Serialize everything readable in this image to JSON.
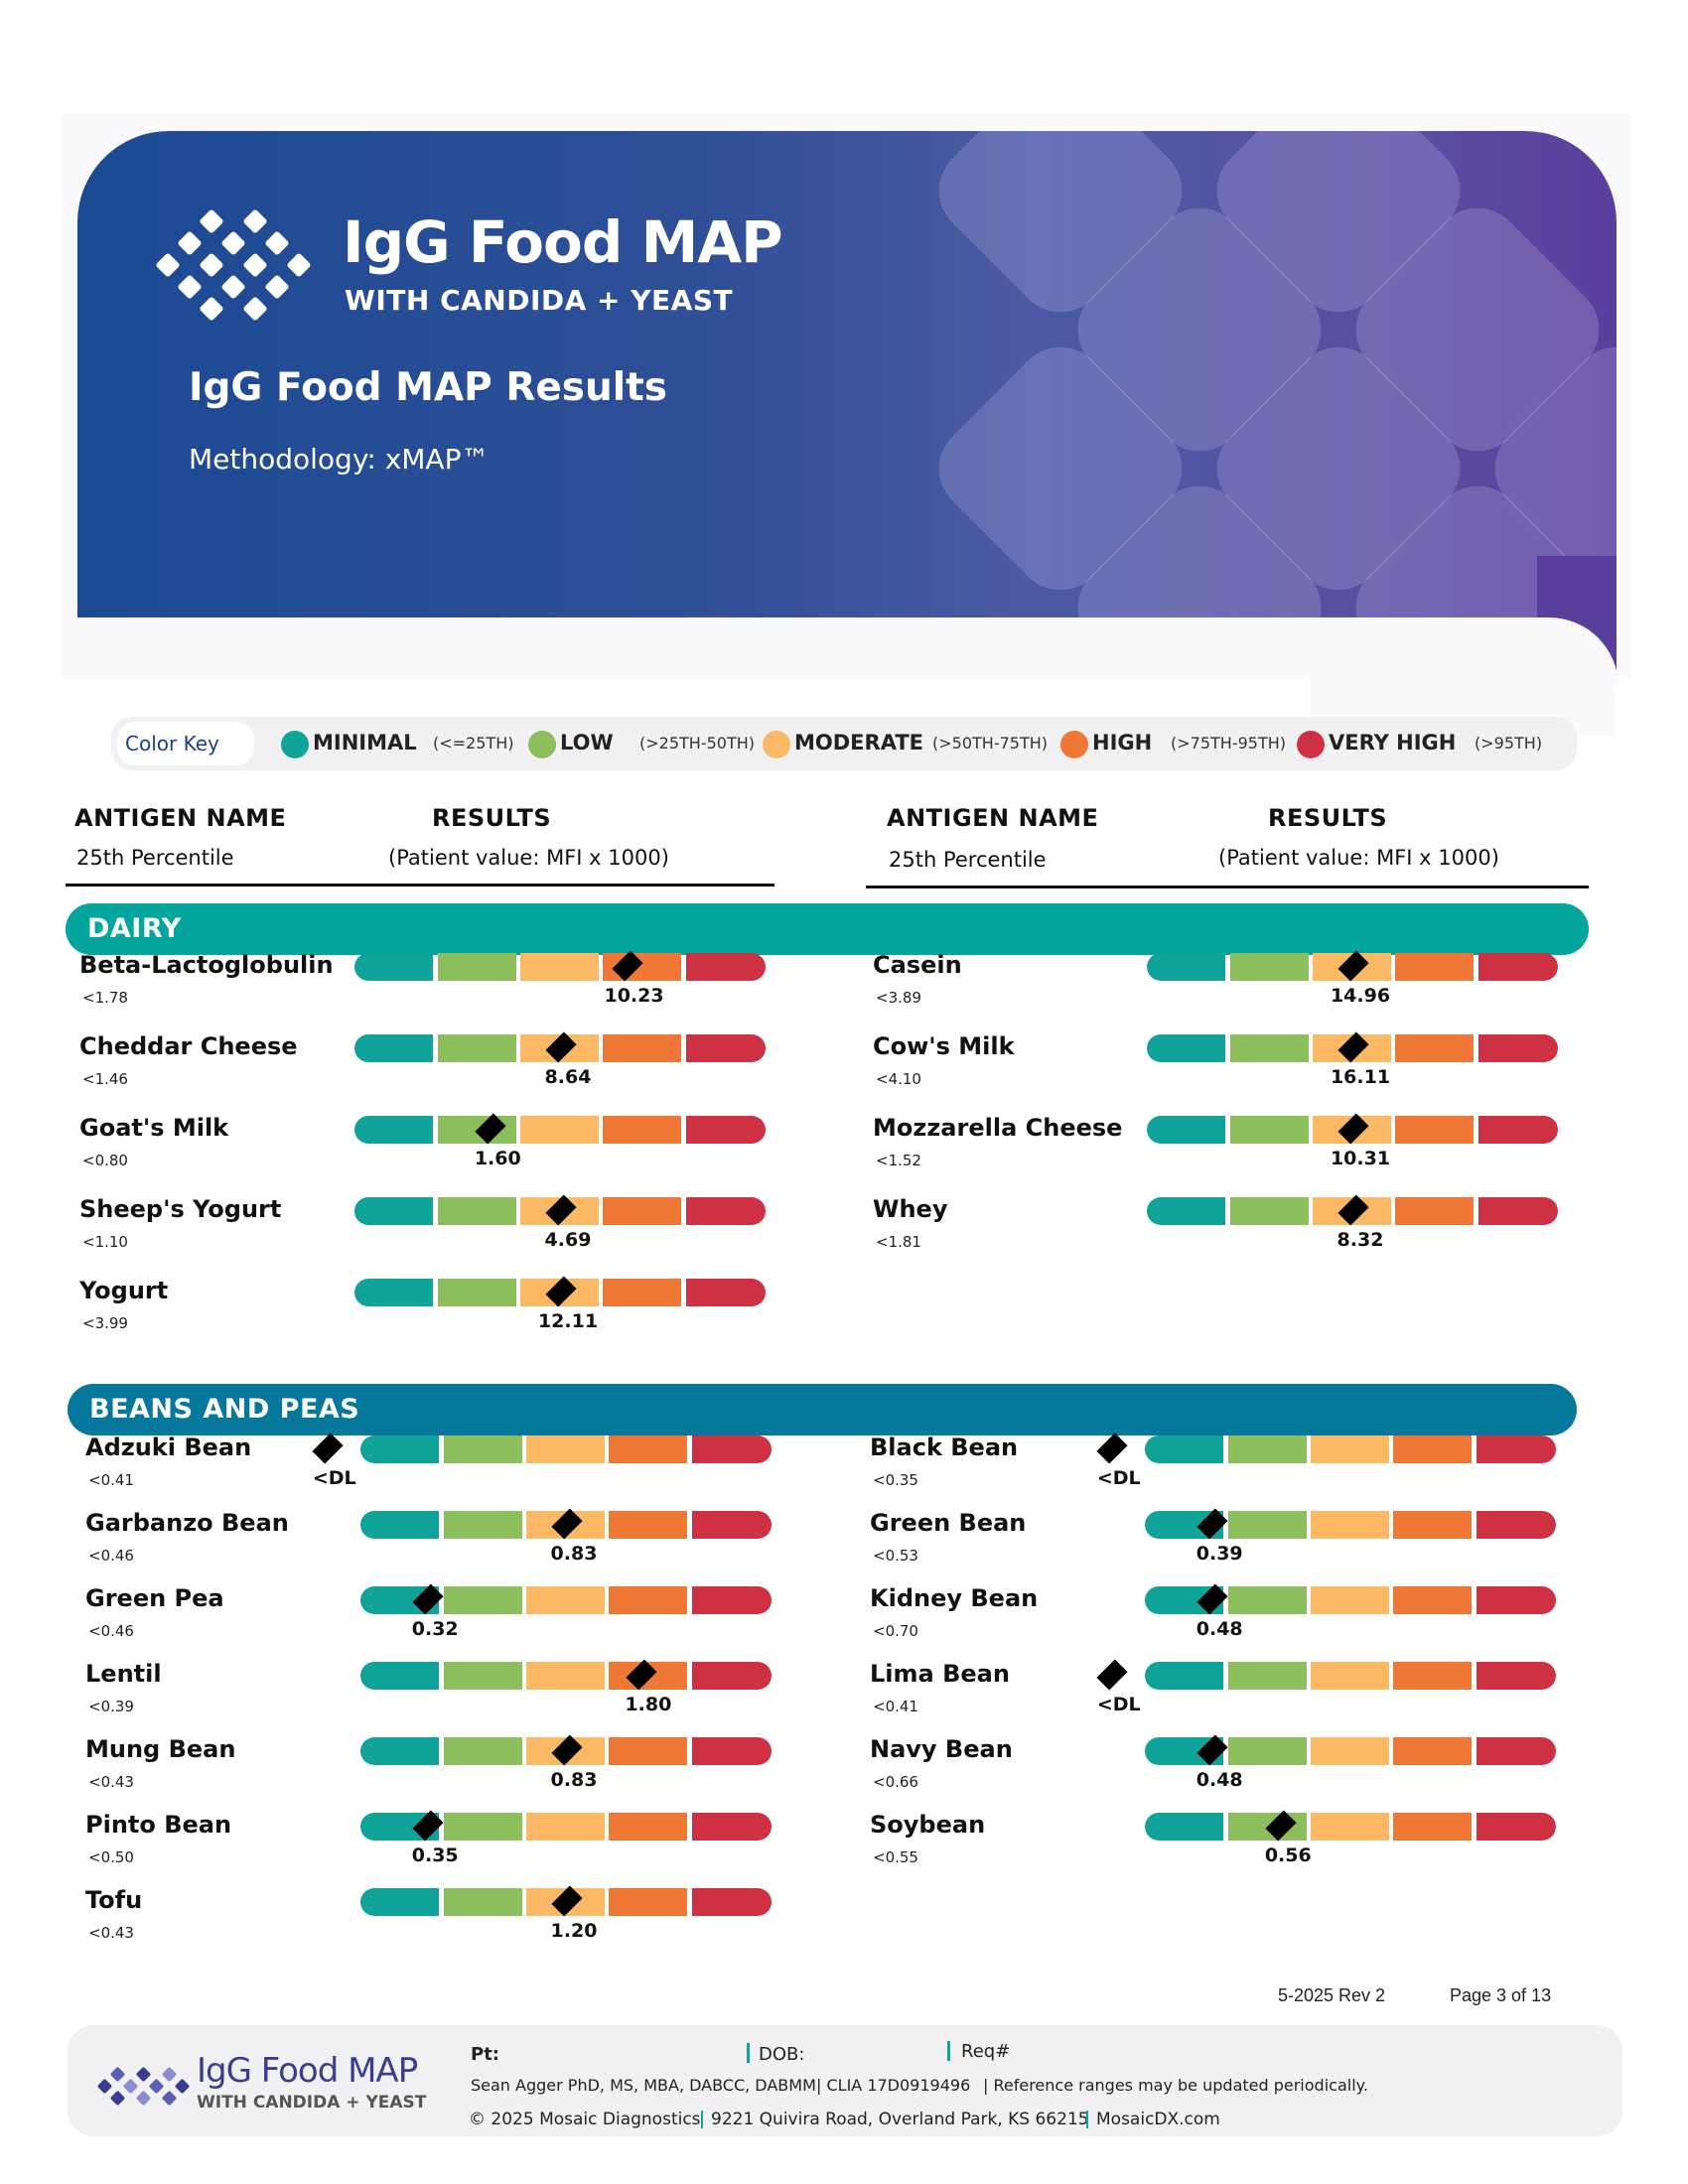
{
  "header": {
    "logo_title": "IgG Food MAP",
    "logo_subtitle": "WITH CANDIDA + YEAST",
    "page_title": "IgG Food MAP Results",
    "methodology": "Methodology: xMAP™"
  },
  "color_key": {
    "label": "Color Key",
    "items": [
      {
        "name": "MINIMAL",
        "range": "(<=25TH)",
        "color": "#0fa39a"
      },
      {
        "name": "LOW",
        "range": "(>25TH-50TH)",
        "color": "#8cbe5c"
      },
      {
        "name": "MODERATE",
        "range": "(>50TH-75TH)",
        "color": "#fbb865"
      },
      {
        "name": "HIGH",
        "range": "(>75TH-95TH)",
        "color": "#f07837"
      },
      {
        "name": "VERY HIGH",
        "range": "(>95TH)",
        "color": "#cf3144"
      }
    ]
  },
  "columns": {
    "antigen_name": "ANTIGEN NAME",
    "percentile": "25th Percentile",
    "results": "RESULTS",
    "results_sub": "(Patient value: MFI x 1000)"
  },
  "sections": [
    {
      "title": "DAIRY",
      "color": "#04a59c",
      "left": [
        {
          "name": "Beta-Lactoglobulin",
          "pct": "<1.78",
          "value": "10.23",
          "level": 3.3
        },
        {
          "name": "Cheddar Cheese",
          "pct": "<1.46",
          "value": "8.64",
          "level": 2.5
        },
        {
          "name": "Goat's Milk",
          "pct": "<0.80",
          "value": "1.60",
          "level": 1.65
        },
        {
          "name": "Sheep's Yogurt",
          "pct": "<1.10",
          "value": "4.69",
          "level": 2.5
        },
        {
          "name": "Yogurt",
          "pct": "<3.99",
          "value": "12.11",
          "level": 2.5
        }
      ],
      "right": [
        {
          "name": "Casein",
          "pct": "<3.89",
          "value": "14.96",
          "level": 2.5
        },
        {
          "name": "Cow's Milk",
          "pct": "<4.10",
          "value": "16.11",
          "level": 2.5
        },
        {
          "name": "Mozzarella Cheese",
          "pct": "<1.52",
          "value": "10.31",
          "level": 2.5
        },
        {
          "name": "Whey",
          "pct": "<1.81",
          "value": "8.32",
          "level": 2.5
        }
      ]
    },
    {
      "title": "BEANS AND PEAS",
      "color": "#05789b",
      "left": [
        {
          "name": "Adzuki Bean",
          "pct": "<0.41",
          "value": "<DL",
          "level": -0.4
        },
        {
          "name": "Garbanzo Bean",
          "pct": "<0.46",
          "value": "0.83",
          "level": 2.5
        },
        {
          "name": "Green Pea",
          "pct": "<0.46",
          "value": "0.32",
          "level": 0.82
        },
        {
          "name": "Lentil",
          "pct": "<0.39",
          "value": "1.80",
          "level": 3.4
        },
        {
          "name": "Mung Bean",
          "pct": "<0.43",
          "value": "0.83",
          "level": 2.5
        },
        {
          "name": "Pinto Bean",
          "pct": "<0.50",
          "value": "0.35",
          "level": 0.82
        },
        {
          "name": "Tofu",
          "pct": "<0.43",
          "value": "1.20",
          "level": 2.5
        }
      ],
      "right": [
        {
          "name": "Black Bean",
          "pct": "<0.35",
          "value": "<DL",
          "level": -0.4
        },
        {
          "name": "Green Bean",
          "pct": "<0.53",
          "value": "0.39",
          "level": 0.82
        },
        {
          "name": "Kidney Bean",
          "pct": "<0.70",
          "value": "0.48",
          "level": 0.82
        },
        {
          "name": "Lima Bean",
          "pct": "<0.41",
          "value": "<DL",
          "level": -0.4
        },
        {
          "name": "Navy Bean",
          "pct": "<0.66",
          "value": "0.48",
          "level": 0.82
        },
        {
          "name": "Soybean",
          "pct": "<0.55",
          "value": "0.56",
          "level": 1.65
        }
      ]
    }
  ],
  "page_footer": {
    "revision": "5-2025 Rev 2",
    "page": "Page 3 of 13"
  },
  "footer": {
    "logo_title": "IgG Food MAP",
    "logo_subtitle": "WITH CANDIDA + YEAST",
    "pt_label": "Pt:",
    "dob_label": "DOB:",
    "req_label": "Req#",
    "director": "Sean Agger PhD, MS, MBA, DABCC, DABMM",
    "clia": "| CLIA 17D0919496",
    "notice": "|  Reference ranges may be updated periodically.",
    "copyright": "© 2025 Mosaic Diagnostics",
    "address": "9221 Quivira Road, Overland Park, KS 66215",
    "website": "MosaicDX.com"
  }
}
